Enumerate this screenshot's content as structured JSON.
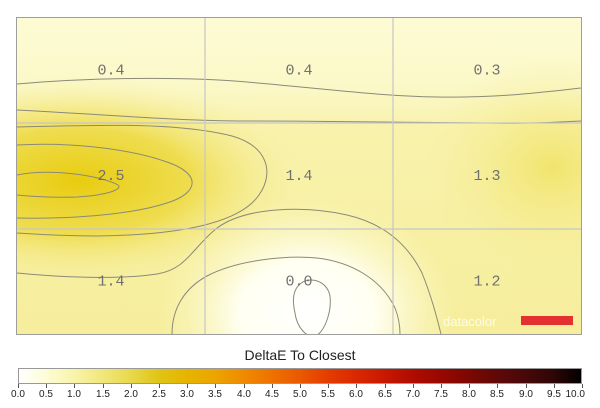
{
  "chart_data": {
    "type": "heatmap",
    "title": "DeltaE To Closest",
    "grid": true,
    "rows": 3,
    "cols": 3,
    "values": [
      [
        0.4,
        0.4,
        0.3
      ],
      [
        2.5,
        1.4,
        1.3
      ],
      [
        1.4,
        0.0,
        1.2
      ]
    ],
    "value_labels": [
      [
        "0.4",
        "0.4",
        "0.3"
      ],
      [
        "2.5",
        "1.4",
        "1.3"
      ],
      [
        "1.4",
        "0.0",
        "1.2"
      ]
    ],
    "colorbar": {
      "min": 0.0,
      "max": 10.0,
      "ticks": [
        "0.0",
        "0.5",
        "1.0",
        "1.5",
        "2.0",
        "2.5",
        "3.0",
        "3.5",
        "4.0",
        "4.5",
        "5.0",
        "5.5",
        "6.0",
        "6.5",
        "7.0",
        "7.5",
        "8.0",
        "8.5",
        "9.0",
        "9.5",
        "10.0"
      ],
      "colors": [
        "#ffffff",
        "#fdfcd4",
        "#f8f3a8",
        "#f0e77a",
        "#e8d84a",
        "#e0c414",
        "#e6b400",
        "#eca400",
        "#f08a00",
        "#ee7200",
        "#ea5800",
        "#e43c00",
        "#da2800",
        "#c81800",
        "#b00c00",
        "#980800",
        "#7c0800",
        "#600808",
        "#480808",
        "#300606",
        "#000000"
      ]
    },
    "watermark": "datacolor"
  }
}
